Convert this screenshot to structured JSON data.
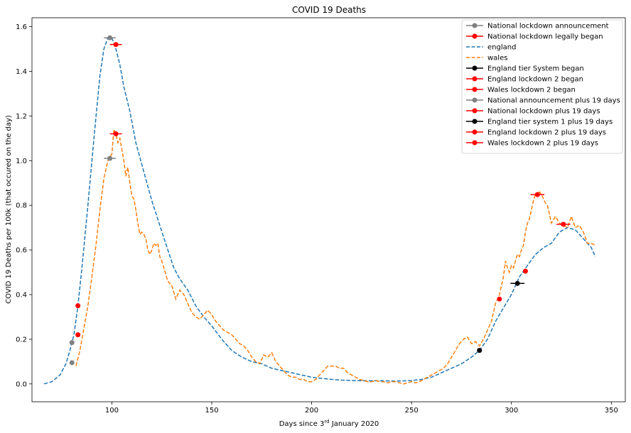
{
  "chart_data": {
    "type": "line",
    "title": "COVID 19 Deaths",
    "xlabel_main": "Days since 3",
    "xlabel_sup": "rd",
    "xlabel_rest": " January 2020",
    "ylabel": "COVID 19 Deaths per 100k (that occured on the day)",
    "xlim": [
      60,
      357
    ],
    "ylim": [
      -0.08,
      1.64
    ],
    "xticks": [
      100,
      150,
      200,
      250,
      300,
      350
    ],
    "yticks": [
      0.0,
      0.2,
      0.4,
      0.6,
      0.8,
      1.0,
      1.2,
      1.4,
      1.6
    ],
    "legend_position": "top-right",
    "grid": false,
    "colors": {
      "england": "#1f77b4",
      "wales": "#ff7f0e",
      "grey": "#808080",
      "red": "#ff0000",
      "black": "#000000"
    },
    "series": [
      {
        "name": "england",
        "style": "dashed",
        "color": "#1f77b4",
        "x": [
          66,
          70,
          74,
          77,
          79,
          81,
          83,
          85,
          88,
          91,
          94,
          96,
          98,
          100,
          102,
          104,
          106,
          109,
          112,
          116,
          120,
          124,
          128,
          131,
          134,
          138,
          142,
          146,
          150,
          155,
          160,
          165,
          170,
          175,
          180,
          185,
          190,
          195,
          200,
          205,
          210,
          215,
          220,
          225,
          230,
          235,
          240,
          245,
          250,
          255,
          260,
          265,
          270,
          275,
          280,
          284,
          288,
          292,
          296,
          300,
          304,
          308,
          312,
          316,
          320,
          324,
          328,
          332,
          336,
          340,
          342
        ],
        "y": [
          0.0,
          0.01,
          0.04,
          0.09,
          0.15,
          0.22,
          0.35,
          0.52,
          0.8,
          1.1,
          1.38,
          1.5,
          1.55,
          1.55,
          1.5,
          1.43,
          1.33,
          1.22,
          1.08,
          0.95,
          0.82,
          0.71,
          0.6,
          0.52,
          0.47,
          0.42,
          0.35,
          0.3,
          0.26,
          0.2,
          0.15,
          0.12,
          0.1,
          0.09,
          0.07,
          0.06,
          0.05,
          0.04,
          0.03,
          0.025,
          0.02,
          0.017,
          0.015,
          0.014,
          0.014,
          0.014,
          0.013,
          0.013,
          0.015,
          0.02,
          0.03,
          0.05,
          0.07,
          0.09,
          0.12,
          0.15,
          0.2,
          0.28,
          0.34,
          0.4,
          0.48,
          0.53,
          0.58,
          0.61,
          0.63,
          0.68,
          0.7,
          0.69,
          0.65,
          0.61,
          0.57
        ]
      },
      {
        "name": "wales",
        "style": "dashed",
        "color": "#ff7f0e",
        "x": [
          82,
          84,
          86,
          88,
          90,
          92,
          94,
          96,
          98,
          100,
          101,
          102,
          103,
          104,
          105,
          106,
          107,
          108,
          109,
          110,
          111,
          112,
          113,
          114,
          115,
          116,
          117,
          118,
          119,
          120,
          121,
          122,
          123,
          124,
          125,
          126,
          128,
          130,
          132,
          134,
          136,
          138,
          140,
          142,
          144,
          146,
          148,
          150,
          152,
          154,
          156,
          158,
          160,
          162,
          164,
          166,
          168,
          170,
          172,
          174,
          176,
          178,
          180,
          182,
          184,
          186,
          188,
          190,
          192,
          194,
          196,
          198,
          200,
          202,
          204,
          206,
          208,
          210,
          212,
          214,
          216,
          218,
          220,
          222,
          224,
          226,
          228,
          230,
          232,
          234,
          236,
          238,
          240,
          242,
          244,
          246,
          248,
          250,
          252,
          254,
          256,
          258,
          260,
          262,
          264,
          266,
          268,
          270,
          272,
          274,
          276,
          278,
          280,
          282,
          284,
          286,
          288,
          290,
          292,
          294,
          295,
          296,
          297,
          298,
          299,
          300,
          301,
          302,
          303,
          304,
          305,
          306,
          307,
          308,
          309,
          310,
          311,
          312,
          313,
          314,
          315,
          316,
          317,
          318,
          319,
          320,
          322,
          324,
          326,
          328,
          330,
          332,
          334,
          336,
          338,
          340,
          342
        ],
        "y": [
          0.08,
          0.15,
          0.25,
          0.35,
          0.48,
          0.62,
          0.78,
          0.92,
          1.0,
          1.03,
          1.14,
          1.12,
          1.08,
          1.1,
          1.05,
          1.0,
          0.93,
          0.97,
          0.9,
          0.84,
          0.83,
          0.78,
          0.72,
          0.67,
          0.68,
          0.67,
          0.65,
          0.6,
          0.58,
          0.6,
          0.63,
          0.62,
          0.63,
          0.57,
          0.55,
          0.52,
          0.46,
          0.44,
          0.38,
          0.42,
          0.4,
          0.36,
          0.32,
          0.3,
          0.29,
          0.31,
          0.33,
          0.31,
          0.28,
          0.26,
          0.24,
          0.23,
          0.22,
          0.2,
          0.18,
          0.17,
          0.15,
          0.12,
          0.1,
          0.09,
          0.13,
          0.12,
          0.14,
          0.1,
          0.08,
          0.06,
          0.04,
          0.03,
          0.03,
          0.02,
          0.02,
          0.01,
          0.01,
          0.02,
          0.04,
          0.06,
          0.08,
          0.08,
          0.08,
          0.07,
          0.07,
          0.05,
          0.04,
          0.03,
          0.02,
          0.015,
          0.01,
          0.01,
          0.015,
          0.01,
          0.01,
          0.005,
          0.01,
          0.01,
          0.005,
          0.0,
          0.005,
          0.01,
          0.005,
          0.01,
          0.02,
          0.03,
          0.04,
          0.05,
          0.06,
          0.07,
          0.09,
          0.12,
          0.15,
          0.18,
          0.2,
          0.21,
          0.18,
          0.19,
          0.17,
          0.2,
          0.24,
          0.28,
          0.36,
          0.4,
          0.44,
          0.48,
          0.55,
          0.52,
          0.5,
          0.53,
          0.52,
          0.55,
          0.58,
          0.57,
          0.6,
          0.62,
          0.68,
          0.72,
          0.74,
          0.78,
          0.82,
          0.85,
          0.84,
          0.86,
          0.85,
          0.83,
          0.81,
          0.8,
          0.76,
          0.72,
          0.75,
          0.72,
          0.71,
          0.7,
          0.75,
          0.7,
          0.71,
          0.68,
          0.63,
          0.63,
          0.62
        ]
      }
    ],
    "markers": [
      {
        "name": "National lockdown announcement",
        "color": "#808080",
        "points": [
          {
            "x": 80,
            "y": 0.095,
            "err": 0
          },
          {
            "x": 80,
            "y": 0.185,
            "err": 0
          }
        ]
      },
      {
        "name": "National lockdown legally began",
        "color": "#ff0000",
        "points": [
          {
            "x": 83,
            "y": 0.22,
            "err": 0
          },
          {
            "x": 83,
            "y": 0.35,
            "err": 0
          }
        ]
      },
      {
        "name": "England tier System began",
        "color": "#000000",
        "points": [
          {
            "x": 284,
            "y": 0.15,
            "err": 0
          }
        ]
      },
      {
        "name": "England lockdown 2 began",
        "color": "#ff0000",
        "points": [
          {
            "x": 307,
            "y": 0.505,
            "err": 0
          }
        ]
      },
      {
        "name": "Wales lockdown 2 began",
        "color": "#ff0000",
        "points": [
          {
            "x": 294,
            "y": 0.38,
            "err": 0
          }
        ]
      },
      {
        "name": "National announcement plus 19 days",
        "color": "#808080",
        "points": [
          {
            "x": 99,
            "y": 1.55,
            "err": 3
          },
          {
            "x": 99,
            "y": 1.01,
            "err": 3
          }
        ]
      },
      {
        "name": "National lockdown plus 19 days",
        "color": "#ff0000",
        "points": [
          {
            "x": 102,
            "y": 1.52,
            "err": 3
          },
          {
            "x": 102,
            "y": 1.12,
            "err": 3
          }
        ]
      },
      {
        "name": "England tier system 1 plus 19 days",
        "color": "#000000",
        "points": [
          {
            "x": 303,
            "y": 0.45,
            "err": 3.5
          }
        ]
      },
      {
        "name": "England lockdown 2 plus 19 days",
        "color": "#ff0000",
        "points": [
          {
            "x": 326,
            "y": 0.715,
            "err": 3.5
          }
        ]
      },
      {
        "name": "Wales lockdown 2 plus 19 days",
        "color": "#ff0000",
        "points": [
          {
            "x": 313,
            "y": 0.848,
            "err": 3.5
          }
        ]
      }
    ],
    "legend": [
      {
        "label": "National lockdown announcement",
        "kind": "marker",
        "color": "#808080"
      },
      {
        "label": "National lockdown legally began",
        "kind": "marker",
        "color": "#ff0000"
      },
      {
        "label": "england",
        "kind": "dashed",
        "color": "#1f77b4"
      },
      {
        "label": "wales",
        "kind": "dashed",
        "color": "#ff7f0e"
      },
      {
        "label": "England tier System began",
        "kind": "marker",
        "color": "#000000"
      },
      {
        "label": "England lockdown 2 began",
        "kind": "marker",
        "color": "#ff0000"
      },
      {
        "label": "Wales lockdown 2 began",
        "kind": "marker",
        "color": "#ff0000"
      },
      {
        "label": "National announcement plus 19 days",
        "kind": "marker",
        "color": "#808080"
      },
      {
        "label": "National lockdown plus 19 days",
        "kind": "marker",
        "color": "#ff0000"
      },
      {
        "label": "England tier system 1 plus 19 days",
        "kind": "marker",
        "color": "#000000"
      },
      {
        "label": "England lockdown 2 plus 19 days",
        "kind": "marker",
        "color": "#ff0000"
      },
      {
        "label": "Wales lockdown 2 plus 19 days",
        "kind": "marker",
        "color": "#ff0000"
      }
    ]
  }
}
